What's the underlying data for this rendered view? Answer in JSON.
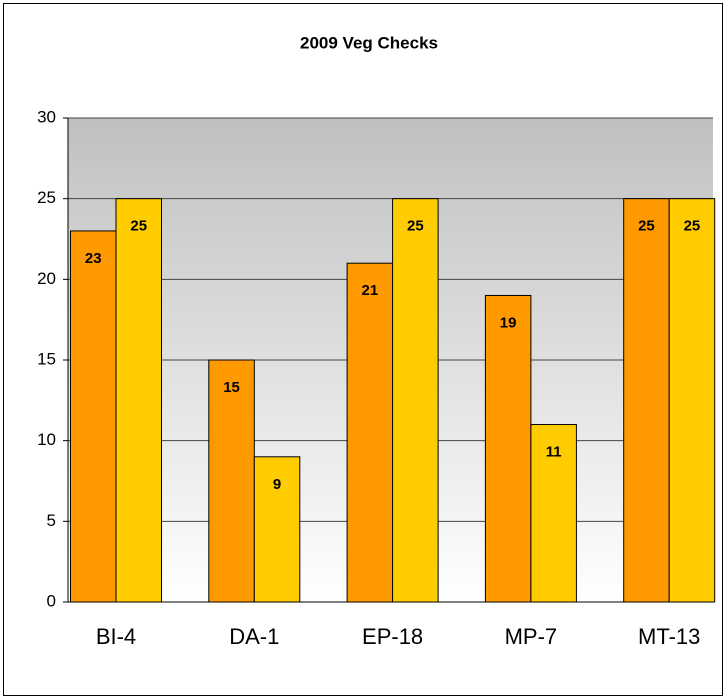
{
  "chart_data": {
    "type": "bar",
    "title": "2009 Veg Checks",
    "categories": [
      "BI-4",
      "DA-1",
      "EP-18",
      "MP-7",
      "MT-13"
    ],
    "series": [
      {
        "color": "#ff9900",
        "values": [
          23,
          15,
          21,
          19,
          25
        ]
      },
      {
        "color": "#ffcc00",
        "values": [
          25,
          9,
          25,
          11,
          25
        ]
      }
    ],
    "ylim": [
      0,
      30
    ],
    "yticks": [
      0,
      5,
      10,
      15,
      20,
      25,
      30
    ],
    "grid": true
  }
}
